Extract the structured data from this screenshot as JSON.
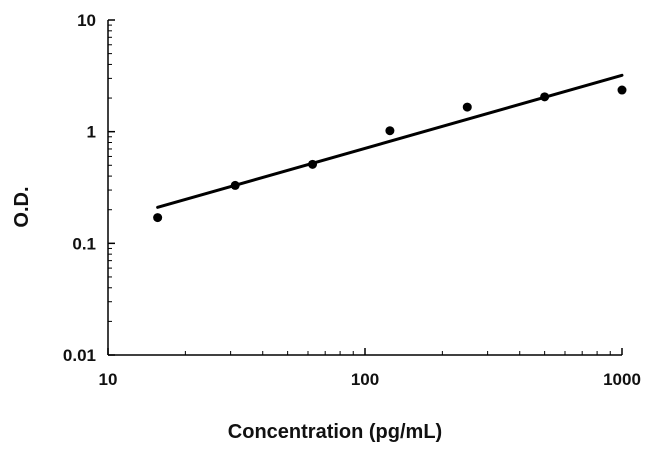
{
  "chart_data": {
    "type": "scatter",
    "xlabel": "Concentration (pg/mL)",
    "ylabel": "O.D.",
    "xscale": "log",
    "yscale": "log",
    "xlim": [
      10,
      1000
    ],
    "ylim": [
      0.01,
      10
    ],
    "x_ticks": [
      10,
      100,
      1000
    ],
    "y_ticks": [
      0.01,
      0.1,
      1,
      10
    ],
    "x_tick_labels": [
      "10",
      "100",
      "1000"
    ],
    "y_tick_labels": [
      "0.01",
      "0.1",
      "1",
      "10"
    ],
    "grid": false,
    "legend": "none",
    "series": [
      {
        "x": [
          15.6,
          31.25,
          62.5,
          125,
          250,
          500,
          1000
        ],
        "y": [
          0.17,
          0.33,
          0.51,
          1.02,
          1.66,
          2.05,
          2.36
        ]
      }
    ],
    "fit_line": {
      "type": "linear fit on log-log axes",
      "x": [
        15.6,
        1000
      ],
      "y": [
        0.21,
        3.2
      ]
    },
    "colors": {
      "points": "#000000",
      "line": "#000000",
      "axes": "#000000"
    }
  }
}
